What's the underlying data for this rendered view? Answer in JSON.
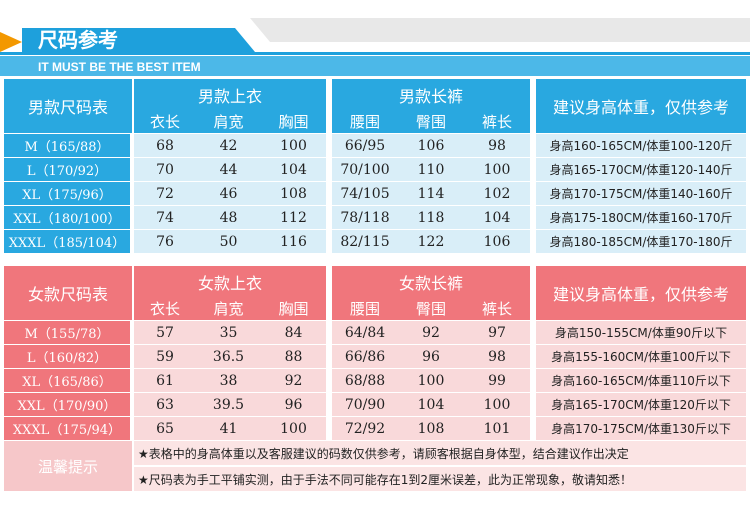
{
  "header": {
    "title": "尺码参考",
    "subtitle": "IT MUST BE THE BEST ITEM"
  },
  "men": {
    "label": "男款尺码表",
    "top_group": "男款上衣",
    "bottom_group": "男款长裤",
    "advice": "建议身高体重，仅供参考",
    "columns": [
      "衣长",
      "肩宽",
      "胸围",
      "腰围",
      "臀围",
      "裤长"
    ],
    "rows": [
      [
        "M（165/88）",
        "68",
        "42",
        "100",
        "66/95",
        "106",
        "98",
        "身高160-165CM/体重100-120斤"
      ],
      [
        "L（170/92）",
        "70",
        "44",
        "104",
        "70/100",
        "110",
        "100",
        "身高165-170CM/体重120-140斤"
      ],
      [
        "XL（175/96）",
        "72",
        "46",
        "108",
        "74/105",
        "114",
        "102",
        "身高170-175CM/体重140-160斤"
      ],
      [
        "XXL（180/100）",
        "74",
        "48",
        "112",
        "78/118",
        "118",
        "104",
        "身高175-180CM/体重160-170斤"
      ],
      [
        "XXXL（185/104）",
        "76",
        "50",
        "116",
        "82/115",
        "122",
        "106",
        "身高180-185CM/体重170-180斤"
      ]
    ]
  },
  "women": {
    "label": "女款尺码表",
    "top_group": "女款上衣",
    "bottom_group": "女款长裤",
    "advice": "建议身高体重，仅供参考",
    "columns": [
      "衣长",
      "肩宽",
      "胸围",
      "腰围",
      "臀围",
      "裤长"
    ],
    "rows": [
      [
        "M（155/78）",
        "57",
        "35",
        "84",
        "64/84",
        "92",
        "97",
        "身高150-155CM/体重90斤以下"
      ],
      [
        "L（160/82）",
        "59",
        "36.5",
        "88",
        "66/86",
        "96",
        "98",
        "身高155-160CM/体重100斤以下"
      ],
      [
        "XL（165/86）",
        "61",
        "38",
        "92",
        "68/88",
        "100",
        "99",
        "身高160-165CM/体重110斤以下"
      ],
      [
        "XXL（170/90）",
        "63",
        "39.5",
        "96",
        "70/90",
        "104",
        "100",
        "身高165-170CM/体重120斤以下"
      ],
      [
        "XXXL（175/94）",
        "65",
        "41",
        "100",
        "72/92",
        "108",
        "101",
        "身高170-175CM/体重130斤以下"
      ]
    ]
  },
  "notes": {
    "label": "温馨提示",
    "lines": [
      "★表格中的身高体重以及客服建议的码数仅供参考，请顾客根据自身体型，结合建议作出决定",
      "★尺码表为手工平铺实测，由于手法不同可能存在1到2厘米误差，此为正常现象，敬请知悉！"
    ]
  }
}
